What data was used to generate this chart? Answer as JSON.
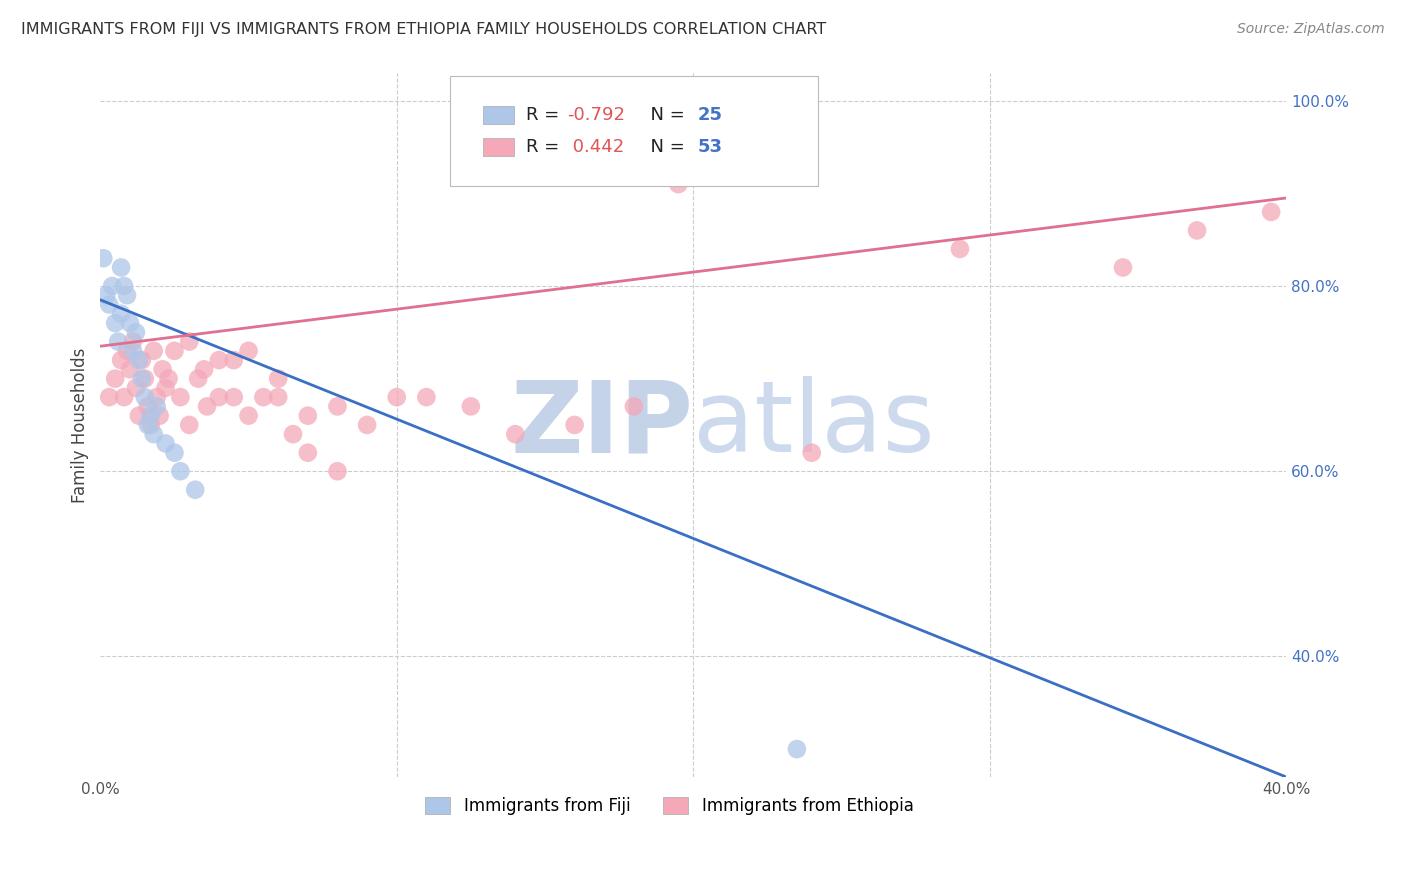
{
  "title": "IMMIGRANTS FROM FIJI VS IMMIGRANTS FROM ETHIOPIA FAMILY HOUSEHOLDS CORRELATION CHART",
  "source": "Source: ZipAtlas.com",
  "ylabel": "Family Households",
  "xlim": [
    0.0,
    0.4
  ],
  "ylim": [
    0.27,
    1.03
  ],
  "xticks": [
    0.0,
    0.1,
    0.2,
    0.3,
    0.4
  ],
  "xtick_labels": [
    "0.0%",
    "",
    "",
    "",
    "40.0%"
  ],
  "yticks_right": [
    1.0,
    0.8,
    0.6,
    0.4
  ],
  "ytick_labels_right": [
    "100.0%",
    "80.0%",
    "60.0%",
    "40.0%"
  ],
  "grid_color": "#cccccc",
  "background_color": "#ffffff",
  "fiji_color": "#aec6e8",
  "ethiopia_color": "#f4a8b8",
  "fiji_line_color": "#3a6fc4",
  "ethiopia_line_color": "#e07090",
  "fiji_R": -0.792,
  "fiji_N": 25,
  "ethiopia_R": 0.442,
  "ethiopia_N": 53,
  "fiji_line_x0": 0.0,
  "fiji_line_y0": 0.785,
  "fiji_line_x1": 0.4,
  "fiji_line_y1": 0.27,
  "ethiopia_line_x0": 0.0,
  "ethiopia_line_y0": 0.735,
  "ethiopia_line_x1": 0.4,
  "ethiopia_line_y1": 0.895,
  "watermark_color": "#ccd8ee",
  "legend_fiji_label": "Immigrants from Fiji",
  "legend_ethiopia_label": "Immigrants from Ethiopia",
  "fiji_scatter_x": [
    0.001,
    0.002,
    0.003,
    0.004,
    0.005,
    0.006,
    0.007,
    0.007,
    0.008,
    0.009,
    0.01,
    0.011,
    0.012,
    0.013,
    0.014,
    0.015,
    0.016,
    0.017,
    0.018,
    0.019,
    0.022,
    0.025,
    0.027,
    0.032,
    0.235
  ],
  "fiji_scatter_y": [
    0.83,
    0.79,
    0.78,
    0.8,
    0.76,
    0.74,
    0.82,
    0.77,
    0.8,
    0.79,
    0.76,
    0.73,
    0.75,
    0.72,
    0.7,
    0.68,
    0.65,
    0.66,
    0.64,
    0.67,
    0.63,
    0.62,
    0.6,
    0.58,
    0.3
  ],
  "ethiopia_scatter_x": [
    0.003,
    0.005,
    0.007,
    0.008,
    0.009,
    0.01,
    0.011,
    0.012,
    0.013,
    0.014,
    0.015,
    0.016,
    0.017,
    0.018,
    0.019,
    0.02,
    0.021,
    0.022,
    0.023,
    0.025,
    0.027,
    0.03,
    0.033,
    0.036,
    0.04,
    0.045,
    0.05,
    0.055,
    0.06,
    0.065,
    0.07,
    0.08,
    0.09,
    0.1,
    0.11,
    0.125,
    0.14,
    0.16,
    0.18,
    0.03,
    0.035,
    0.04,
    0.045,
    0.05,
    0.06,
    0.07,
    0.08,
    0.195,
    0.29,
    0.345,
    0.37,
    0.395,
    0.24
  ],
  "ethiopia_scatter_y": [
    0.68,
    0.7,
    0.72,
    0.68,
    0.73,
    0.71,
    0.74,
    0.69,
    0.66,
    0.72,
    0.7,
    0.67,
    0.65,
    0.73,
    0.68,
    0.66,
    0.71,
    0.69,
    0.7,
    0.73,
    0.68,
    0.65,
    0.7,
    0.67,
    0.68,
    0.72,
    0.66,
    0.68,
    0.7,
    0.64,
    0.62,
    0.67,
    0.65,
    0.68,
    0.68,
    0.67,
    0.64,
    0.65,
    0.67,
    0.74,
    0.71,
    0.72,
    0.68,
    0.73,
    0.68,
    0.66,
    0.6,
    0.91,
    0.84,
    0.82,
    0.86,
    0.88,
    0.62
  ]
}
